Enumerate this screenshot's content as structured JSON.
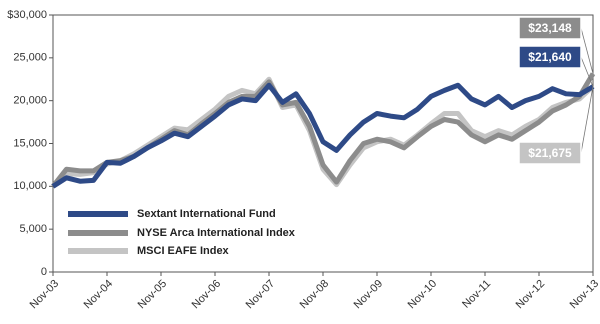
{
  "chart_data": {
    "type": "line",
    "categories": [
      "Nov-03",
      null,
      null,
      null,
      "Nov-04",
      null,
      null,
      null,
      "Nov-05",
      null,
      null,
      null,
      "Nov-06",
      null,
      null,
      null,
      "Nov-07",
      null,
      null,
      null,
      "Nov-08",
      null,
      null,
      null,
      "Nov-09",
      null,
      null,
      null,
      "Nov-10",
      null,
      null,
      null,
      "Nov-11",
      null,
      null,
      null,
      "Nov-12",
      null,
      null,
      null,
      "Nov-13"
    ],
    "series": [
      {
        "name": "Sextant International Fund",
        "color": "#2e4a87",
        "values": [
          10000,
          11000,
          10600,
          10700,
          12800,
          12700,
          13500,
          14500,
          15300,
          16200,
          15800,
          17000,
          18200,
          19500,
          20200,
          20000,
          21800,
          19800,
          20800,
          18500,
          15200,
          14200,
          16000,
          17500,
          18500,
          18200,
          18000,
          19000,
          20500,
          21200,
          21800,
          20200,
          19500,
          20500,
          19200,
          20000,
          20500,
          21400,
          20800,
          20700,
          21640
        ],
        "value_labels": [
          null,
          null,
          null,
          null,
          null,
          null,
          null,
          null,
          null,
          null,
          null,
          null,
          null,
          null,
          null,
          null,
          null,
          null,
          null,
          null,
          null,
          null,
          null,
          null,
          null,
          null,
          null,
          null,
          null,
          null,
          null,
          null,
          null,
          null,
          null,
          null,
          null,
          null,
          null,
          null,
          "$21,640"
        ]
      },
      {
        "name": "NYSE Arca International Index",
        "color": "#8c8c8c",
        "values": [
          10000,
          12000,
          11800,
          11800,
          12800,
          13000,
          13500,
          14500,
          15500,
          16500,
          16000,
          17300,
          18500,
          19800,
          20500,
          20500,
          22200,
          19500,
          19800,
          17000,
          12500,
          10500,
          13000,
          15000,
          15500,
          15200,
          14500,
          15800,
          17000,
          17800,
          17500,
          16000,
          15200,
          16000,
          15500,
          16500,
          17500,
          18800,
          19500,
          20500,
          23148
        ],
        "value_labels": [
          null,
          null,
          null,
          null,
          null,
          null,
          null,
          null,
          null,
          null,
          null,
          null,
          null,
          null,
          null,
          null,
          null,
          null,
          null,
          null,
          null,
          null,
          null,
          null,
          null,
          null,
          null,
          null,
          null,
          null,
          null,
          null,
          null,
          null,
          null,
          null,
          null,
          null,
          null,
          null,
          "$23,148"
        ]
      },
      {
        "name": "MSCI EAFE Index",
        "color": "#c4c4c4",
        "values": [
          10000,
          11500,
          11400,
          11600,
          12600,
          13000,
          13800,
          14800,
          15800,
          16800,
          16600,
          17800,
          19000,
          20500,
          21200,
          20800,
          22500,
          19200,
          19500,
          16500,
          12000,
          10200,
          12500,
          14500,
          15200,
          15500,
          14800,
          16000,
          17300,
          18500,
          18500,
          16500,
          15800,
          16500,
          16000,
          17000,
          17800,
          19200,
          19800,
          20200,
          21675
        ],
        "value_labels": [
          null,
          null,
          null,
          null,
          null,
          null,
          null,
          null,
          null,
          null,
          null,
          null,
          null,
          null,
          null,
          null,
          null,
          null,
          null,
          null,
          null,
          null,
          null,
          null,
          null,
          null,
          null,
          null,
          null,
          null,
          null,
          null,
          null,
          null,
          null,
          null,
          null,
          null,
          null,
          null,
          "$21,675"
        ]
      }
    ],
    "ylim": [
      0,
      30000
    ],
    "yticks": [
      0,
      {
        "value": 5000,
        "label": "5,000"
      },
      {
        "value": 10000,
        "label": "10,000"
      },
      {
        "value": 15000,
        "label": "15,000"
      },
      {
        "value": 20000,
        "label": "20,000"
      },
      {
        "value": 25000,
        "label": "25,000"
      },
      {
        "value": 30000,
        "label": "$30,000"
      }
    ],
    "legend": "lower-left"
  }
}
